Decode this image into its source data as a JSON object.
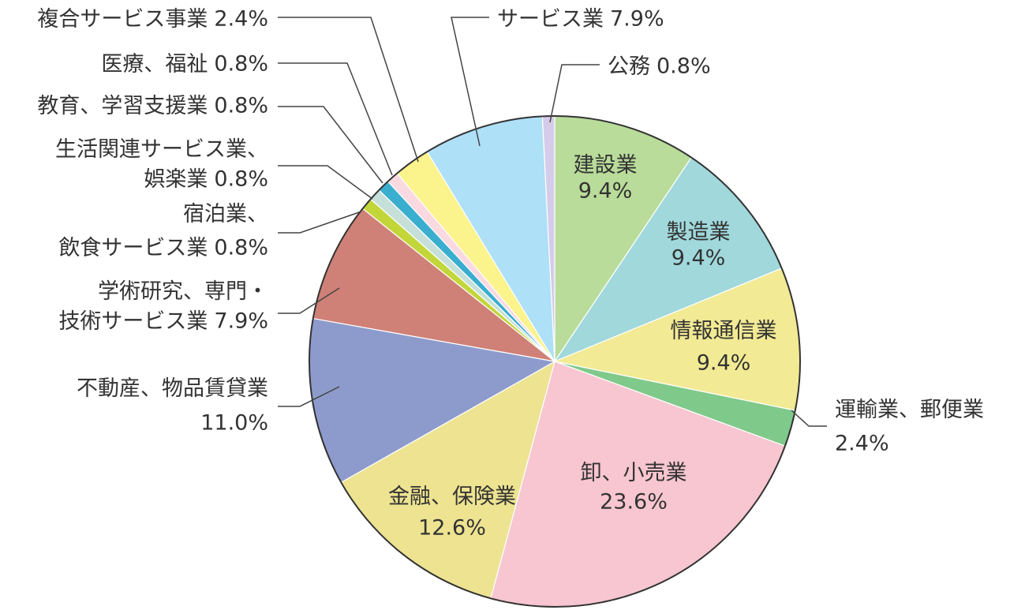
{
  "chart_data": {
    "type": "pie",
    "categories": [
      "建設業",
      "製造業",
      "情報通信業",
      "運輸業、郵便業",
      "卸、小売業",
      "金融、保険業",
      "不動産、物品賃貸業",
      "学術研究、専門・\n技術サービス業",
      "宿泊業、\n飲食サービス業",
      "生活関連サービス業、\n娯楽業",
      "教育、学習支援業",
      "医療、福祉",
      "複合サービス事業",
      "サービス業",
      "公務"
    ],
    "values": [
      9.4,
      9.4,
      9.4,
      2.4,
      23.6,
      12.6,
      11.0,
      7.9,
      0.8,
      0.8,
      0.8,
      0.8,
      2.4,
      7.9,
      0.8
    ],
    "value_labels": [
      "9.4%",
      "9.4%",
      "9.4%",
      "2.4%",
      "23.6%",
      "12.6%",
      "11.0%",
      "7.9%",
      "0.8%",
      "0.8%",
      "0.8%",
      "0.8%",
      "2.4%",
      "7.9%",
      "0.8%"
    ],
    "colors": [
      "#b9dc9a",
      "#a0d8dc",
      "#f2ea94",
      "#7fc98a",
      "#f7c6d0",
      "#ede391",
      "#8d9bcc",
      "#cf8177",
      "#c2d63a",
      "#c6e0d9",
      "#3aaecf",
      "#fbd9e0",
      "#fbf38c",
      "#aee0f7",
      "#d5ccea"
    ]
  }
}
